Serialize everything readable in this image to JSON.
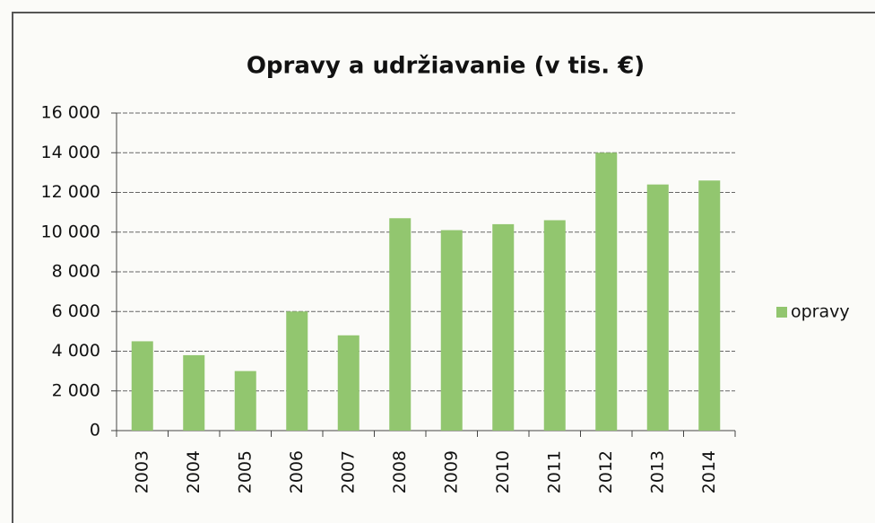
{
  "chart_data": {
    "type": "bar",
    "title": "Opravy a udržiavanie  (v tis. €)",
    "categories": [
      "2003",
      "2004",
      "2005",
      "2006",
      "2007",
      "2008",
      "2009",
      "2010",
      "2011",
      "2012",
      "2013",
      "2014"
    ],
    "series": [
      {
        "name": "opravy",
        "color": "#92c66f",
        "values": [
          4500,
          3800,
          3000,
          6000,
          4800,
          10700,
          10100,
          10400,
          10600,
          14000,
          12400,
          12600
        ]
      }
    ],
    "ylim": [
      0,
      16000
    ],
    "yticks": [
      0,
      {
        "value": 2000,
        "label": "2 000"
      },
      {
        "value": 4000,
        "label": "4 000"
      },
      {
        "value": 6000,
        "label": "6 000"
      },
      {
        "value": 8000,
        "label": "8 000"
      },
      {
        "value": 10000,
        "label": "10 000"
      },
      {
        "value": 12000,
        "label": "12 000"
      },
      {
        "value": 14000,
        "label": "14 000"
      },
      {
        "value": 16000,
        "label": "16 000"
      }
    ],
    "grid": true,
    "legend": "right"
  }
}
